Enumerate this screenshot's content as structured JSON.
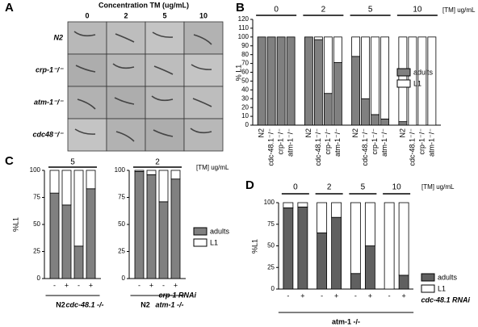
{
  "panel_labels": [
    "A",
    "B",
    "C",
    "D"
  ],
  "panel_a": {
    "title": "Concentration TM (ug/mL)",
    "columns": [
      "0",
      "2",
      "5",
      "10"
    ],
    "rows": [
      "N2",
      "crp-1⁻/⁻",
      "atm-1⁻/⁻",
      "cdc48⁻/⁻"
    ]
  },
  "chart_data": [
    {
      "type": "stacked_bar",
      "y_label": "% L1",
      "unit_label": "[TM] ug/mL",
      "groups": [
        {
          "label": "0",
          "categories": [
            "N2",
            "cdc-48.1⁻/⁻",
            "crp-1⁻/⁻",
            "atm-1⁻/⁻"
          ]
        },
        {
          "label": "2",
          "categories": [
            "N2",
            "cdc-48.1⁻/⁻",
            "crp-1⁻/⁻",
            "atm-1⁻/⁻"
          ]
        },
        {
          "label": "5",
          "categories": [
            "N2",
            "cdc-48.1⁻/⁻",
            "crp-1⁻/⁻",
            "atm-1⁻/⁻"
          ]
        },
        {
          "label": "10",
          "categories": [
            "N2",
            "cdc-48.1⁻/⁻",
            "crp-1⁻/⁻",
            "atm-1⁻/⁻"
          ]
        }
      ],
      "series": [
        {
          "name": "adults",
          "color": "#808080",
          "values": [
            100,
            100,
            100,
            100,
            100,
            97,
            36,
            71,
            78,
            30,
            12,
            7,
            4,
            0,
            0,
            0
          ]
        },
        {
          "name": "L1",
          "color": "#ffffff",
          "values": [
            0,
            0,
            0,
            0,
            0,
            3,
            64,
            29,
            22,
            70,
            88,
            93,
            96,
            100,
            100,
            100
          ]
        }
      ],
      "ylim": [
        0,
        120
      ],
      "yticks": [
        0,
        10,
        20,
        30,
        40,
        50,
        60,
        70,
        80,
        90,
        100,
        110,
        120
      ],
      "legend": true
    },
    {
      "type": "stacked_bar",
      "y_label": "%L1",
      "groups": [
        {
          "label": "5",
          "categories": [
            "-",
            "+",
            "-",
            "+"
          ]
        }
      ],
      "genotypes": [
        "N2",
        "cdc-48.1 -/-"
      ],
      "series": [
        {
          "name": "adults",
          "color": "#808080",
          "values": [
            79,
            68,
            30,
            83
          ]
        },
        {
          "name": "L1",
          "color": "#ffffff",
          "values": [
            21,
            32,
            70,
            17
          ]
        }
      ],
      "ylim": [
        0,
        100
      ],
      "yticks": [
        0,
        25,
        50,
        75,
        100
      ],
      "legend": false
    },
    {
      "type": "stacked_bar",
      "unit_label": "[TM] ug/mL",
      "rnai_label": "crp-1 RNAi",
      "groups": [
        {
          "label": "2",
          "categories": [
            "-",
            "+",
            "-",
            "+"
          ]
        }
      ],
      "genotypes": [
        "N2",
        "atm-1 -/-"
      ],
      "series": [
        {
          "name": "adults",
          "color": "#808080",
          "values": [
            99,
            96,
            71,
            92
          ]
        },
        {
          "name": "L1",
          "color": "#ffffff",
          "values": [
            1,
            4,
            29,
            8
          ]
        }
      ],
      "ylim": [
        0,
        100
      ],
      "yticks": [
        0,
        25,
        50,
        75,
        100
      ],
      "legend": true
    },
    {
      "type": "stacked_bar",
      "y_label": "%L1",
      "unit_label": "[TM] ug/mL",
      "rnai_label": "cdc-48.1 RNAi",
      "groups": [
        {
          "label": "0",
          "categories": [
            "-",
            "+"
          ]
        },
        {
          "label": "2",
          "categories": [
            "-",
            "+"
          ]
        },
        {
          "label": "5",
          "categories": [
            "-",
            "+"
          ]
        },
        {
          "label": "10",
          "categories": [
            "-",
            "+"
          ]
        }
      ],
      "genotypes": [
        "atm-1 -/-"
      ],
      "series": [
        {
          "name": "adults",
          "color": "#606060",
          "values": [
            94,
            95,
            65,
            83,
            18,
            50,
            0,
            16
          ]
        },
        {
          "name": "L1",
          "color": "#ffffff",
          "values": [
            6,
            5,
            35,
            17,
            82,
            50,
            100,
            84
          ]
        }
      ],
      "ylim": [
        0,
        100
      ],
      "yticks": [
        0,
        25,
        50,
        75,
        100
      ],
      "legend": true
    }
  ]
}
